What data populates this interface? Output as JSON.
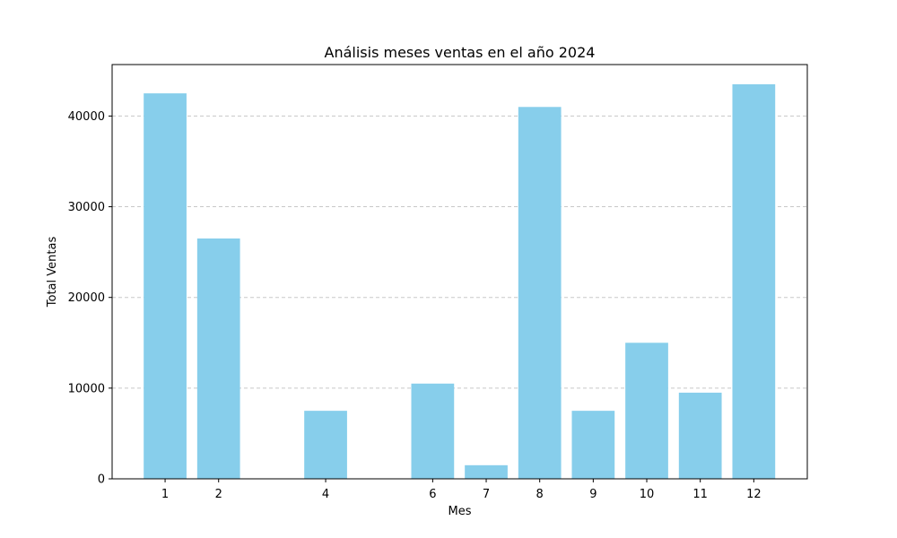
{
  "chart_data": {
    "type": "bar",
    "title": "Análisis meses ventas en el año 2024",
    "xlabel": "Mes",
    "ylabel": "Total Ventas",
    "x": [
      1,
      2,
      4,
      6,
      7,
      8,
      9,
      10,
      11,
      12
    ],
    "values": [
      42500,
      26500,
      7500,
      10500,
      1500,
      41000,
      7500,
      15000,
      9500,
      43500
    ],
    "xticks": [
      "1",
      "2",
      "4",
      "6",
      "7",
      "8",
      "9",
      "10",
      "11",
      "12"
    ],
    "yticks": [
      "0",
      "10000",
      "20000",
      "30000",
      "40000"
    ],
    "ylim": [
      0,
      45675
    ],
    "xlim": [
      0.01,
      13.0
    ],
    "grid": "y-dashed",
    "bar_color": "#87CEEB",
    "grid_color": "#c8c8c8"
  }
}
